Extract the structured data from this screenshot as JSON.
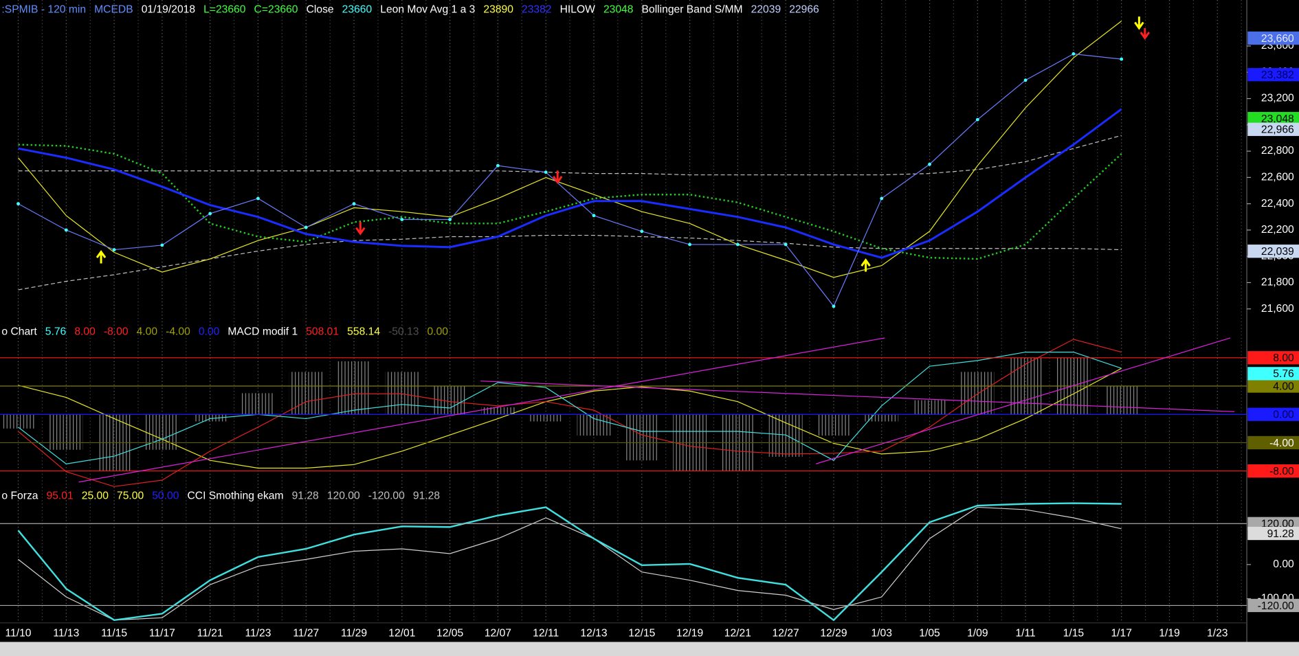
{
  "chart_data": [
    {
      "type": "line",
      "header": [
        {
          "text": ":SPMIB - 120 min",
          "color": "#5f8fff"
        },
        {
          "text": "MCEDB",
          "color": "#5f8fff"
        },
        {
          "text": "01/19/2018",
          "color": "#ffffff"
        },
        {
          "text": "L=23660",
          "color": "#40ff40"
        },
        {
          "text": "C=23660",
          "color": "#40ff40"
        },
        {
          "text": "Close",
          "color": "#ffffff"
        },
        {
          "text": "23660",
          "color": "#40ffff"
        },
        {
          "text": "Leon Mov Avg 1 a 3",
          "color": "#ffffff"
        },
        {
          "text": "23890",
          "color": "#ffff40"
        },
        {
          "text": "23382",
          "color": "#3030ff"
        },
        {
          "text": "HILOW",
          "color": "#ffffff"
        },
        {
          "text": "23048",
          "color": "#40ff40"
        },
        {
          "text": "Bollinger Band S/MM",
          "color": "#ffffff"
        },
        {
          "text": "22039",
          "color": "#c0d0ff"
        },
        {
          "text": "22966",
          "color": "#c0d0ff"
        }
      ],
      "categories": [
        "11/10",
        "11/13",
        "11/15",
        "11/17",
        "11/21",
        "11/23",
        "11/27",
        "11/29",
        "12/01",
        "12/05",
        "12/07",
        "12/11",
        "12/13",
        "12/15",
        "12/19",
        "12/21",
        "12/27",
        "12/29",
        "1/03",
        "1/05",
        "1/09",
        "1/11",
        "1/15",
        "1/17",
        "1/19",
        "1/23"
      ],
      "series": [
        {
          "color": "#c0c0c0",
          "dash": "5 3",
          "width": 1,
          "values": [
            22650,
            22650,
            22650,
            22650,
            22650,
            22650,
            22650,
            22650,
            22650,
            22650,
            22650,
            22640,
            22630,
            22630,
            22620,
            22620,
            22620,
            22620,
            22620,
            22630,
            22660,
            22720,
            22820,
            22920,
            null,
            null
          ]
        },
        {
          "color": "#c0c0c0",
          "dash": "5 3",
          "width": 1,
          "values": [
            21745,
            21810,
            21860,
            21920,
            21980,
            22040,
            22090,
            22120,
            22130,
            22150,
            22150,
            22160,
            22160,
            22150,
            22140,
            22120,
            22100,
            22070,
            22060,
            22060,
            22060,
            22060,
            22060,
            22050,
            null,
            null
          ]
        },
        {
          "color": "#22cc22",
          "dash": "2 3",
          "width": 2,
          "values": [
            22850,
            22840,
            22780,
            22630,
            22250,
            22150,
            22110,
            22260,
            22300,
            22250,
            22250,
            22340,
            22440,
            22470,
            22470,
            22410,
            22300,
            22190,
            22060,
            21990,
            21980,
            22090,
            22440,
            22780,
            null,
            null
          ]
        },
        {
          "color": "#e8e820",
          "width": 1,
          "values": [
            22750,
            22310,
            22030,
            21880,
            21980,
            22120,
            22220,
            22370,
            22340,
            22300,
            22440,
            22600,
            22470,
            22340,
            22250,
            22090,
            21970,
            21840,
            21930,
            22190,
            22690,
            23130,
            23510,
            23790,
            null,
            null
          ]
        },
        {
          "color": "#1a2cff",
          "width": 2.5,
          "values": [
            22820,
            22750,
            22660,
            22530,
            22390,
            22300,
            22170,
            22110,
            22080,
            22070,
            22150,
            22310,
            22420,
            22420,
            22360,
            22300,
            22220,
            22090,
            21990,
            22120,
            22340,
            22600,
            22850,
            23120,
            null,
            null
          ]
        },
        {
          "color": "#6a7cff",
          "marker": "#40ffff",
          "width": 1,
          "values": [
            22400,
            22200,
            22050,
            22085,
            22325,
            22440,
            22220,
            22400,
            22280,
            22280,
            22690,
            22640,
            22310,
            22190,
            22090,
            22090,
            22090,
            21620,
            22440,
            22700,
            23040,
            23340,
            23540,
            23500,
            null,
            null
          ]
        }
      ],
      "ylim": [
        21480,
        23950
      ],
      "yticks": [
        {
          "value": 21600,
          "label": "21,600"
        },
        {
          "value": 21800,
          "label": "21,800"
        },
        {
          "value": 22000,
          "label": "22,000"
        },
        {
          "value": 22200,
          "label": "22,200"
        },
        {
          "value": 22400,
          "label": "22,400"
        },
        {
          "value": 22600,
          "label": "22,600"
        },
        {
          "value": 22800,
          "label": "22,800"
        },
        {
          "value": 23000,
          "label": "23,000"
        },
        {
          "value": 23200,
          "label": "23,200"
        },
        {
          "value": 23400,
          "label": "23,400"
        },
        {
          "value": 23600,
          "label": "23,600"
        }
      ],
      "value_labels": [
        {
          "value": 23660,
          "label": "23,660",
          "color": "#4a6fe8",
          "text_color": "#e8e8ff"
        },
        {
          "value": 23382,
          "label": "23,382",
          "color": "#1a1aff",
          "text_color": "#000060"
        },
        {
          "value": 23048,
          "label": "23,048",
          "color": "#22dd22",
          "text_color": "#000000"
        },
        {
          "value": 22966,
          "label": "22,966",
          "color": "#c8d8f0",
          "text_color": "#000000"
        },
        {
          "value": 22039,
          "label": "22,039",
          "color": "#c8d8f0",
          "text_color": "#000000"
        }
      ]
    },
    {
      "type": "line",
      "header": [
        {
          "text": "o Chart",
          "color": "#ffffff"
        },
        {
          "text": "5.76",
          "color": "#40ffff"
        },
        {
          "text": "8.00",
          "color": "#ff2020"
        },
        {
          "text": "-8.00",
          "color": "#ff2020"
        },
        {
          "text": "4.00",
          "color": "#a0a000"
        },
        {
          "text": "-4.00",
          "color": "#a0a000"
        },
        {
          "text": "0.00",
          "color": "#2020ff"
        },
        {
          "text": "MACD modif 1",
          "color": "#ffffff"
        },
        {
          "text": "508.01",
          "color": "#ff2020"
        },
        {
          "text": "558.14",
          "color": "#ffff40"
        },
        {
          "text": "-50.13",
          "color": "#505050"
        },
        {
          "text": "0.00",
          "color": "#a0a000"
        }
      ],
      "series": [
        {
          "type": "bar",
          "color": "#8a8a8a",
          "values": [
            -2,
            -5,
            -8,
            -5,
            -1,
            3,
            6,
            7.5,
            6,
            4,
            1,
            -1,
            -3,
            -6.5,
            -8,
            -8,
            -6,
            -3,
            -1,
            2,
            6,
            8,
            8,
            4,
            null,
            null
          ]
        },
        {
          "color": "#e8e820",
          "width": 1,
          "values": [
            4.1,
            2.4,
            -0.6,
            -3.5,
            -6.5,
            -7.6,
            -7.6,
            -7.1,
            -5.2,
            -2.9,
            -0.6,
            1.8,
            3.3,
            3.9,
            3.3,
            1.8,
            -1.2,
            -4.1,
            -5.6,
            -5.2,
            -3.5,
            -0.6,
            2.9,
            6.5,
            null,
            null
          ]
        },
        {
          "color": "#e02020",
          "width": 1,
          "values": [
            -2.4,
            -8.1,
            -10.2,
            -9.3,
            -5.2,
            -1.8,
            1.8,
            2.9,
            2.9,
            1.8,
            1.2,
            1.8,
            0.6,
            -2.9,
            -4.5,
            -5.2,
            -5.6,
            -5.5,
            -5.2,
            -1.8,
            2.9,
            7.1,
            10.6,
            8.8,
            null,
            null
          ]
        },
        {
          "color": "#40e0e0",
          "width": 1,
          "values": [
            -1.8,
            -7,
            -5.9,
            -3.5,
            -0.6,
            0,
            -0.6,
            0.6,
            1.4,
            0.9,
            4.5,
            3.8,
            -0.6,
            -2.4,
            -2.4,
            -2.4,
            -2.9,
            -6.5,
            1.2,
            6.8,
            7.6,
            8.8,
            8.8,
            6.5,
            null,
            null
          ]
        }
      ],
      "ylim": [
        -10.5,
        10.8
      ],
      "levels": [
        {
          "value": 8,
          "label": "8.00",
          "color": "#ff1a1a",
          "text_color": "#000000"
        },
        {
          "value": 4,
          "label": "4.00",
          "color": "#7f7f00",
          "text_color": "#000000"
        },
        {
          "value": 0,
          "label": "0.00",
          "color": "#1a1aff",
          "text_color": "#000060"
        },
        {
          "value": -4,
          "label": "-4.00",
          "color": "#5f5f00",
          "text_color": "#ffffff"
        },
        {
          "value": -8,
          "label": "-8.00",
          "color": "#ff1a1a",
          "text_color": "#000000"
        }
      ],
      "value_labels": [
        {
          "value": 5.76,
          "label": "5.76",
          "color": "#40ffff",
          "text_color": "#000000"
        }
      ]
    },
    {
      "type": "line",
      "header": [
        {
          "text": "o Forza",
          "color": "#ffffff"
        },
        {
          "text": "95.01",
          "color": "#ff2020"
        },
        {
          "text": "25.00",
          "color": "#ffff40"
        },
        {
          "text": "75.00",
          "color": "#ffff40"
        },
        {
          "text": "50.00",
          "color": "#2020ff"
        },
        {
          "text": "CCI Smothing ekam",
          "color": "#ffffff"
        },
        {
          "text": "91.28",
          "color": "#c0c0c0"
        },
        {
          "text": "120.00",
          "color": "#c0c0c0"
        },
        {
          "text": "-120.00",
          "color": "#c0c0c0"
        },
        {
          "text": "91.28",
          "color": "#c0c0c0"
        }
      ],
      "series": [
        {
          "color": "#d0d0d0",
          "width": 1,
          "values": [
            15,
            -95,
            -163,
            -156,
            -59,
            -5,
            15,
            39,
            46,
            32,
            76,
            137,
            76,
            -22,
            -46,
            -76,
            -90,
            -132,
            -95,
            76,
            168,
            161,
            137,
            105,
            null,
            null
          ]
        },
        {
          "color": "#40e0e0",
          "width": 2,
          "values": [
            100,
            -71,
            -163,
            -144,
            -46,
            22,
            46,
            88,
            112,
            110,
            144,
            168,
            76,
            -2,
            2,
            -39,
            -59,
            -163,
            -22,
            124,
            173,
            178,
            180,
            178,
            null,
            null
          ]
        }
      ],
      "ylim": [
        -171,
        186
      ],
      "yticks": [
        {
          "value": 0,
          "label": "0.00"
        },
        {
          "value": -100,
          "label": "-100.00"
        }
      ],
      "levels": [
        {
          "value": 120,
          "label": "120.00",
          "color": "#a8a8a8",
          "text_color": "#000000"
        },
        {
          "value": -120,
          "label": "-120.00",
          "color": "#a8a8a8",
          "text_color": "#000000"
        }
      ],
      "value_labels": [
        {
          "value": 91.28,
          "label": "91.28",
          "color": "#dcdcdc",
          "text_color": "#000000"
        }
      ]
    }
  ]
}
